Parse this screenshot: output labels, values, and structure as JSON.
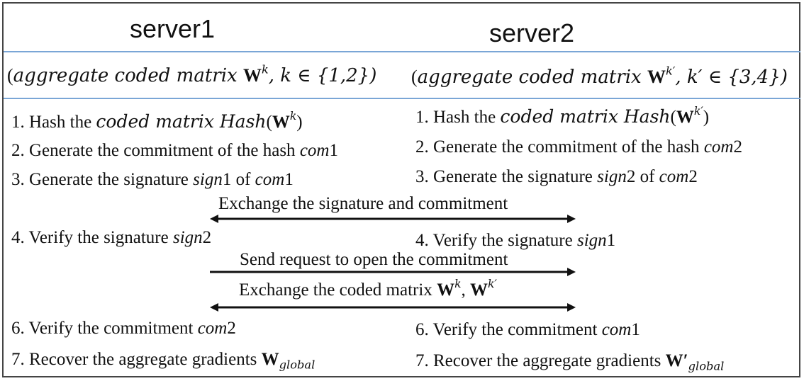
{
  "headers": {
    "left": "server1",
    "right": "server2"
  },
  "aggregate": {
    "left": {
      "open": "(",
      "text": "aggregate coded matrix ",
      "W": "W",
      "sup": "k",
      "cond": ", k ∈ {1,2})"
    },
    "right": {
      "open": "(",
      "text": "aggregate coded matrix ",
      "W": "W",
      "sup": "k′",
      "cond": ", k′ ∈ {3,4})"
    }
  },
  "left_steps": {
    "s1_pre": "1. Hash the ",
    "s1_it": "coded matrix Hash",
    "s1_open": "(",
    "s1_W": "W",
    "s1_sup": "k",
    "s1_close": ")",
    "s2_pre": "2. Generate the commitment of the hash ",
    "s2_it": "com",
    "s2_num": "1",
    "s3_pre": "3. Generate the signature ",
    "s3_it1": "sign",
    "s3_num1": "1",
    "s3_mid": " of ",
    "s3_it2": "com",
    "s3_num2": "1",
    "s4_pre": "4. Verify the signature ",
    "s4_it": "sign",
    "s4_num": "2",
    "s6_pre": "6. Verify the commitment ",
    "s6_it": "com",
    "s6_num": "2",
    "s7_pre": "7. Recover the aggregate gradients ",
    "s7_W": "W",
    "s7_sub": "global"
  },
  "right_steps": {
    "s1_pre": "1. Hash the ",
    "s1_it": "coded matrix Hash",
    "s1_open": "(",
    "s1_W": "W",
    "s1_sup": "k′",
    "s1_close": ")",
    "s2_pre": "2. Generate the commitment of the hash ",
    "s2_it": "com",
    "s2_num": "2",
    "s3_pre": "3. Generate the signature ",
    "s3_it1": "sign",
    "s3_num1": "2",
    "s3_mid": " of ",
    "s3_it2": "com",
    "s3_num2": "2",
    "s4_pre": "4. Verify the signature ",
    "s4_it": "sign",
    "s4_num": "1",
    "s6_pre": "6. Verify the commitment ",
    "s6_it": "com",
    "s6_num": "1",
    "s7_pre": "7. Recover the aggregate gradients ",
    "s7_W": "W′",
    "s7_sub": "global"
  },
  "exchanges": {
    "e1": "Exchange  the signature and commitment",
    "e2": "Send request to open the commitment",
    "e3_pre": "Exchange the coded matrix ",
    "e3_W1": "W",
    "e3_sup1": "k",
    "e3_sep": ", ",
    "e3_W2": "W",
    "e3_sup2": "k′"
  },
  "colors": {
    "divider": "#7aa6d6",
    "border": "#444444",
    "text": "#111111"
  }
}
